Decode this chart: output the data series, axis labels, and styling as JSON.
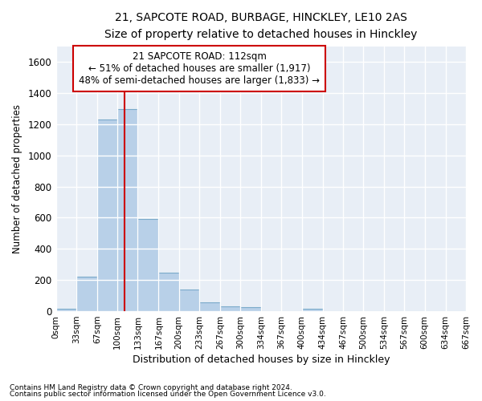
{
  "title_line1": "21, SAPCOTE ROAD, BURBAGE, HINCKLEY, LE10 2AS",
  "title_line2": "Size of property relative to detached houses in Hinckley",
  "xlabel": "Distribution of detached houses by size in Hinckley",
  "ylabel": "Number of detached properties",
  "bar_color": "#b8d0e8",
  "bar_edge_color": "#7aaaca",
  "bg_color": "#e8eef6",
  "grid_color": "#ffffff",
  "annotation_box_color": "#cc0000",
  "annotation_text": "21 SAPCOTE ROAD: 112sqm\n← 51% of detached houses are smaller (1,917)\n48% of semi-detached houses are larger (1,833) →",
  "vline_x": 112,
  "vline_color": "#cc0000",
  "footer_line1": "Contains HM Land Registry data © Crown copyright and database right 2024.",
  "footer_line2": "Contains public sector information licensed under the Open Government Licence v3.0.",
  "bin_edges": [
    0,
    33,
    67,
    100,
    133,
    167,
    200,
    233,
    267,
    300,
    334,
    367,
    400,
    434,
    467,
    500,
    534,
    567,
    600,
    634,
    667
  ],
  "bin_counts": [
    15,
    220,
    1230,
    1295,
    590,
    245,
    140,
    55,
    30,
    25,
    0,
    0,
    15,
    0,
    0,
    0,
    0,
    0,
    0,
    0
  ],
  "ylim": [
    0,
    1700
  ],
  "yticks": [
    0,
    200,
    400,
    600,
    800,
    1000,
    1200,
    1400,
    1600
  ],
  "tick_labels": [
    "0sqm",
    "33sqm",
    "67sqm",
    "100sqm",
    "133sqm",
    "167sqm",
    "200sqm",
    "233sqm",
    "267sqm",
    "300sqm",
    "334sqm",
    "367sqm",
    "400sqm",
    "434sqm",
    "467sqm",
    "500sqm",
    "534sqm",
    "567sqm",
    "600sqm",
    "634sqm",
    "667sqm"
  ],
  "title_fontsize": 11,
  "subtitle_fontsize": 9.5,
  "xlabel_fontsize": 9,
  "ylabel_fontsize": 8.5
}
